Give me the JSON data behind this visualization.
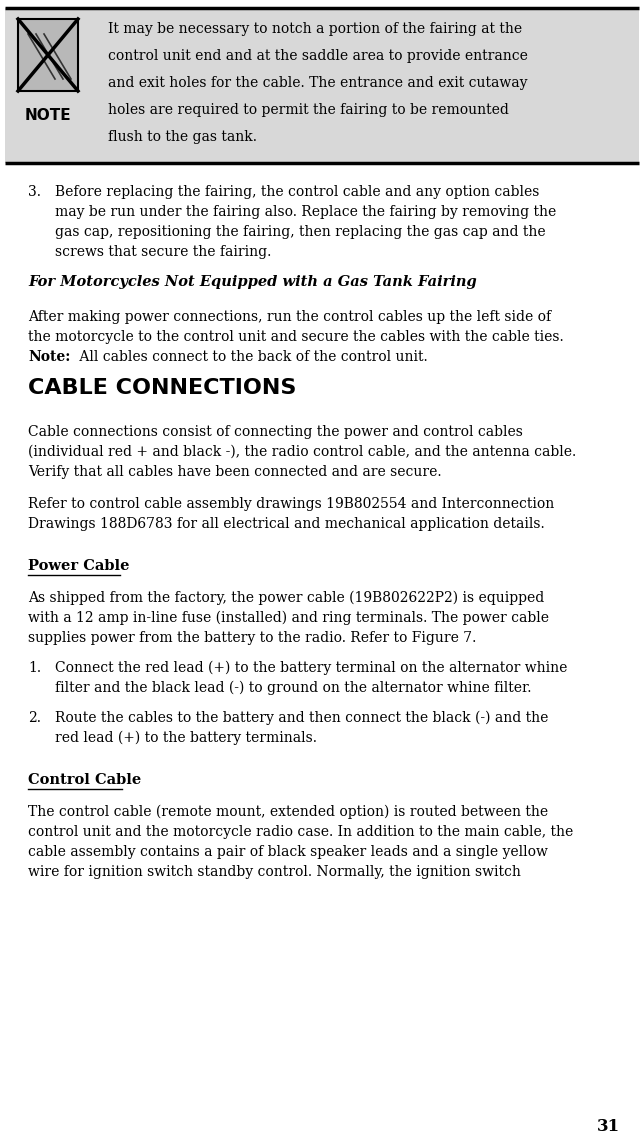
{
  "page_number": "31",
  "bg_color": "#ffffff",
  "note_box_bg": "#d8d8d8",
  "note_box_border": "#000000",
  "note_icon_label": "NOTE",
  "note_text_lines": [
    "It may be necessary to notch a portion of the fairing at the",
    "control unit end and at the saddle area to provide entrance",
    "and exit holes for the cable. The entrance and exit cutaway",
    "holes are required to permit the fairing to be remounted",
    "flush to the gas tank."
  ],
  "item3_lines": [
    "Before replacing the fairing, the control cable and any option cables",
    "may be run under the fairing also. Replace the fairing by removing the",
    "gas cap, repositioning the fairing, then replacing the gas cap and the",
    "screws that secure the fairing."
  ],
  "subheading1": "For Motorcycles Not Equipped with a Gas Tank Fairing",
  "p1_lines": [
    "After making power connections, run the control cables up the left side of",
    "the motorcycle to the control unit and secure the cables with the cable ties."
  ],
  "p1_note_bold": "Note:",
  "p1_note_rest": " All cables connect to the back of the control unit.",
  "heading_cable": "CABLE CONNECTIONS",
  "cable_p_lines": [
    "Cable connections consist of connecting the power and control cables",
    "(individual red + and black -), the radio control cable, and the antenna cable.",
    "Verify that all cables have been connected and are secure."
  ],
  "ref_lines": [
    "Refer to control cable assembly drawings 19B802554 and Interconnection",
    "Drawings 188D6783 for all electrical and mechanical application details."
  ],
  "subheading2": "Power Cable",
  "power_lines": [
    "As shipped from the factory, the power cable (19B802622P2) is equipped",
    "with a 12 amp in-line fuse (installed) and ring terminals. The power cable",
    "supplies power from the battery to the radio. Refer to Figure 7."
  ],
  "item1_lines": [
    "Connect the red lead (+) to the battery terminal on the alternator whine",
    "filter and the black lead (-) to ground on the alternator whine filter."
  ],
  "item2_lines": [
    "Route the cables to the battery and then connect the black (-) and the",
    "red lead (+) to the battery terminals."
  ],
  "subheading3": "Control Cable",
  "control_lines": [
    "The control cable (remote mount, extended option) is routed between the",
    "control unit and the motorcycle radio case. In addition to the main cable, the",
    "cable assembly contains a pair of black speaker leads and a single yellow",
    "wire for ignition switch standby control. Normally, the ignition switch"
  ]
}
